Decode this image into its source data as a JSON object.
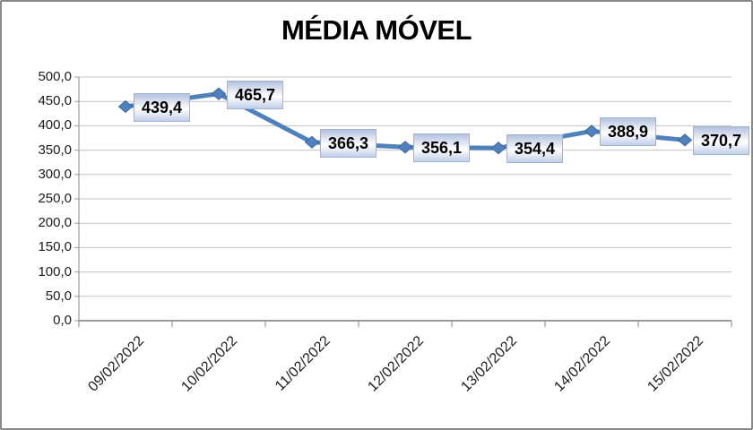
{
  "frame": {
    "background": "#FFFFFF",
    "border_color": "#898989"
  },
  "chart_data": {
    "type": "line",
    "title": "MÉDIA MÓVEL",
    "categories": [
      "09/02/2022",
      "10/02/2022",
      "11/02/2022",
      "12/02/2022",
      "13/02/2022",
      "14/02/2022",
      "15/02/2022"
    ],
    "values": [
      439.4,
      465.7,
      366.3,
      356.1,
      354.4,
      388.9,
      370.7
    ],
    "data_labels": [
      "439,4",
      "465,7",
      "366,3",
      "356,1",
      "354,4",
      "388,9",
      "370,7"
    ],
    "xlabel": "",
    "ylabel": "",
    "ylim": [
      0,
      500
    ],
    "y_step": 50,
    "y_tick_labels": [
      "0,0",
      "50,0",
      "100,0",
      "150,0",
      "200,0",
      "250,0",
      "300,0",
      "350,0",
      "400,0",
      "450,0",
      "500,0"
    ],
    "grid": true,
    "legend": false,
    "marker": "diamond",
    "colors": {
      "line": "#4F81BD",
      "marker_fill": "#4F81BD",
      "marker_edge": "#3E6A9E",
      "gridline": "#C3C3C3",
      "axis": "#9A9A9A",
      "tick_label": "#1A1A1A",
      "title": "#000000",
      "data_label_text": "#000000",
      "data_label_border": "#9FB3D6",
      "data_label_grad_top": "#B4C2DF",
      "data_label_grad_mid": "#FFFFFF",
      "data_label_grad_bottom": "#C2CFE9"
    }
  }
}
